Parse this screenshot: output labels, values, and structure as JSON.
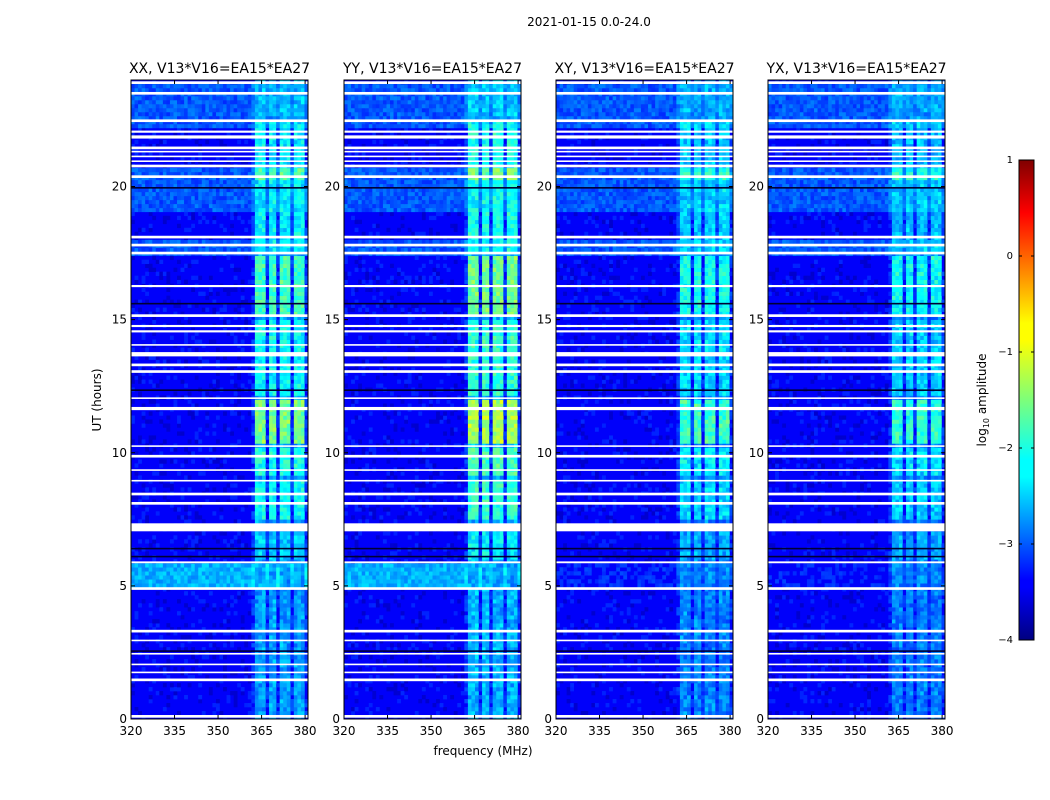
{
  "chart_data": {
    "type": "heatmap",
    "suptitle": "2021-01-15 0.0-24.0",
    "xlabel": "frequency (MHz)",
    "ylabel": "UT (hours)",
    "xlim": [
      320,
      381
    ],
    "ylim": [
      0,
      24
    ],
    "xticks": [
      320,
      335,
      350,
      365,
      380
    ],
    "yticks": [
      0,
      5,
      10,
      15,
      20
    ],
    "x_tick_labels": [
      "320",
      "335",
      "350",
      "365",
      "380"
    ],
    "y_tick_labels": [
      "0",
      "5",
      "10",
      "15",
      "20"
    ],
    "panels": [
      {
        "title": "XX, V13*V16=EA15*EA27"
      },
      {
        "title": "YY, V13*V16=EA15*EA27"
      },
      {
        "title": "XY, V13*V16=EA15*EA27"
      },
      {
        "title": "YX, V13*V16=EA15*EA27"
      }
    ],
    "colorbar": {
      "label": "log10 amplitude",
      "label_main": "log",
      "label_sub": "10",
      "label_rest": " amplitude",
      "range": [
        -4,
        1
      ],
      "ticks": [
        -4,
        -3,
        -2,
        -1,
        0,
        1
      ],
      "tick_labels": [
        "−4",
        "−3",
        "−2",
        "−1",
        "0",
        "1"
      ],
      "colormap": "jet"
    },
    "background_log_amplitude": -3.4,
    "rfi_freq_band_mhz": [
      362,
      381
    ],
    "rfi_channel_groups_mhz": [
      [
        362.5,
        366.5
      ],
      [
        367.5,
        370.5
      ],
      [
        371.5,
        375.5
      ],
      [
        376.5,
        380
      ]
    ],
    "flagged_hours": [
      [
        0.05,
        0.15
      ],
      [
        1.42,
        1.52
      ],
      [
        1.72,
        1.78
      ],
      [
        2.02,
        2.08
      ],
      [
        2.42,
        2.48
      ],
      [
        2.92,
        2.98
      ],
      [
        3.25,
        3.35
      ],
      [
        4.85,
        4.95
      ],
      [
        5.85,
        5.92
      ],
      [
        7.05,
        7.35
      ],
      [
        8.05,
        8.15
      ],
      [
        8.4,
        8.5
      ],
      [
        8.92,
        8.98
      ],
      [
        9.32,
        9.38
      ],
      [
        9.82,
        9.92
      ],
      [
        10.22,
        10.28
      ],
      [
        11.6,
        11.72
      ],
      [
        12.02,
        12.08
      ],
      [
        13.0,
        13.1
      ],
      [
        13.25,
        13.35
      ],
      [
        13.62,
        13.78
      ],
      [
        14.02,
        14.08
      ],
      [
        14.52,
        14.6
      ],
      [
        14.72,
        14.8
      ],
      [
        15.1,
        15.2
      ],
      [
        16.22,
        16.3
      ],
      [
        17.45,
        17.55
      ],
      [
        17.75,
        17.85
      ],
      [
        18.05,
        18.15
      ],
      [
        20.32,
        20.42
      ],
      [
        20.72,
        20.82
      ],
      [
        20.92,
        20.98
      ],
      [
        21.1,
        21.16
      ],
      [
        21.28,
        21.34
      ],
      [
        21.4,
        21.5
      ],
      [
        21.8,
        21.92
      ],
      [
        22.02,
        22.1
      ],
      [
        22.42,
        22.52
      ],
      [
        23.45,
        23.55
      ],
      [
        23.85,
        23.95
      ]
    ],
    "dark_lines_hours": [
      2.55,
      6.1,
      6.4,
      12.35,
      15.6,
      19.95
    ],
    "light_band_hours": [
      [
        17.3,
        17.9
      ],
      [
        19.0,
        20.6
      ],
      [
        22.2,
        23.8
      ]
    ],
    "panel_rfi_strength": [
      1.0,
      1.15,
      0.85,
      0.8
    ],
    "panel_low_band_5h": [
      1.0,
      1.0,
      0.2,
      0.15
    ]
  }
}
